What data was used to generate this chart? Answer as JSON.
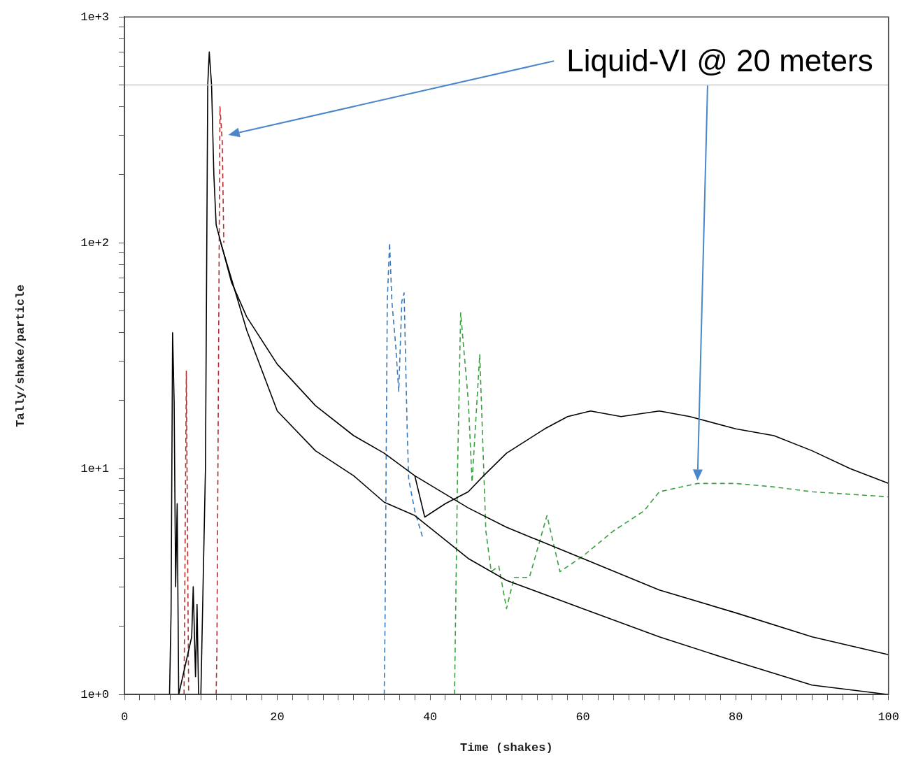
{
  "chart_data": {
    "type": "line",
    "xlabel": "Time (shakes)",
    "ylabel": "Tally/shake/particle",
    "log": "y",
    "grid": false,
    "legend": false,
    "marker": "none",
    "xlim": [
      0,
      100
    ],
    "ylim": [
      1,
      1000
    ],
    "xticks": [
      0,
      {
        "value": 2,
        "label": null
      },
      {
        "value": 4,
        "label": null
      },
      {
        "value": 6,
        "label": null
      },
      {
        "value": 8,
        "label": null
      },
      {
        "value": 10,
        "label": null
      },
      {
        "value": 12,
        "label": null
      },
      {
        "value": 14,
        "label": null
      },
      {
        "value": 16,
        "label": null
      },
      {
        "value": 18,
        "label": null
      },
      20,
      {
        "value": 22,
        "label": null
      },
      {
        "value": 24,
        "label": null
      },
      {
        "value": 26,
        "label": null
      },
      {
        "value": 28,
        "label": null
      },
      {
        "value": 30,
        "label": null
      },
      {
        "value": 32,
        "label": null
      },
      {
        "value": 34,
        "label": null
      },
      {
        "value": 36,
        "label": null
      },
      {
        "value": 38,
        "label": null
      },
      40,
      {
        "value": 42,
        "label": null
      },
      {
        "value": 44,
        "label": null
      },
      {
        "value": 46,
        "label": null
      },
      {
        "value": 48,
        "label": null
      },
      {
        "value": 50,
        "label": null
      },
      {
        "value": 52,
        "label": null
      },
      {
        "value": 54,
        "label": null
      },
      {
        "value": 56,
        "label": null
      },
      {
        "value": 58,
        "label": null
      },
      60,
      {
        "value": 62,
        "label": null
      },
      {
        "value": 64,
        "label": null
      },
      {
        "value": 66,
        "label": null
      },
      {
        "value": 68,
        "label": null
      },
      {
        "value": 70,
        "label": null
      },
      {
        "value": 72,
        "label": null
      },
      {
        "value": 74,
        "label": null
      },
      {
        "value": 76,
        "label": null
      },
      {
        "value": 78,
        "label": null
      },
      80,
      {
        "value": 82,
        "label": null
      },
      {
        "value": 84,
        "label": null
      },
      {
        "value": 86,
        "label": null
      },
      {
        "value": 88,
        "label": null
      },
      {
        "value": 90,
        "label": null
      },
      {
        "value": 92,
        "label": null
      },
      {
        "value": 94,
        "label": null
      },
      {
        "value": 96,
        "label": null
      },
      {
        "value": 98,
        "label": null
      },
      100
    ],
    "yticks": [
      {
        "value": 1,
        "label": "1e+0"
      },
      {
        "value": 2,
        "label": null
      },
      {
        "value": 3,
        "label": null
      },
      {
        "value": 4,
        "label": null
      },
      {
        "value": 5,
        "label": null
      },
      {
        "value": 6,
        "label": null
      },
      {
        "value": 7,
        "label": null
      },
      {
        "value": 8,
        "label": null
      },
      {
        "value": 9,
        "label": null
      },
      {
        "value": 10,
        "label": "1e+1"
      },
      {
        "value": 20,
        "label": null
      },
      {
        "value": 30,
        "label": null
      },
      {
        "value": 40,
        "label": null
      },
      {
        "value": 50,
        "label": null
      },
      {
        "value": 60,
        "label": null
      },
      {
        "value": 70,
        "label": null
      },
      {
        "value": 80,
        "label": null
      },
      {
        "value": 90,
        "label": null
      },
      {
        "value": 100,
        "label": "1e+2"
      },
      {
        "value": 200,
        "label": null
      },
      {
        "value": 300,
        "label": null
      },
      {
        "value": 400,
        "label": null
      },
      {
        "value": 500,
        "label": null
      },
      {
        "value": 600,
        "label": null
      },
      {
        "value": 700,
        "label": null
      },
      {
        "value": 800,
        "label": null
      },
      {
        "value": 900,
        "label": null
      },
      {
        "value": 1000,
        "label": "1e+3"
      }
    ],
    "ref_lines": [
      {
        "axis": "y",
        "value": 500,
        "color": "#c8c8c8"
      }
    ],
    "annotations": [
      "Liquid-VI @ 20 meters"
    ],
    "series": [
      {
        "color": "#000000",
        "line_style": "solid",
        "x": [
          5.9,
          6.1,
          6.3,
          6.5,
          6.7,
          6.9,
          7.1,
          8.8,
          9.0,
          9.3,
          9.5,
          9.7,
          10.0,
          10.6,
          10.9,
          11.1,
          11.4,
          11.7,
          12,
          14,
          16,
          20,
          25,
          30,
          34,
          38,
          45,
          50,
          60,
          70,
          80,
          90,
          100
        ],
        "values": [
          1,
          2.3,
          40,
          20,
          3,
          7,
          1,
          1.8,
          3,
          1.2,
          2.5,
          1,
          1,
          10,
          500,
          700,
          500,
          200,
          120,
          67,
          47,
          29,
          19,
          14,
          11.7,
          9.3,
          6.7,
          5.5,
          4.0,
          2.9,
          2.3,
          1.8,
          1.5
        ]
      },
      {
        "color": "#000000",
        "line_style": "solid",
        "x": [
          38,
          39.3,
          42,
          45,
          47,
          50,
          55,
          58,
          61,
          65,
          70,
          74,
          80,
          85,
          90,
          95,
          100
        ],
        "values": [
          9.3,
          6.1,
          7.0,
          7.9,
          9.3,
          11.7,
          15,
          17,
          18,
          17,
          18,
          17,
          15,
          14,
          12,
          10,
          8.6
        ]
      },
      {
        "color": "#000000",
        "line_style": "solid",
        "x": [
          12.6,
          13,
          16,
          20,
          25,
          30,
          34,
          38,
          45,
          50,
          60,
          70,
          80,
          90,
          100
        ],
        "values": [
          100,
          90,
          41,
          18,
          12,
          9.3,
          7.1,
          6.2,
          4.0,
          3.2,
          2.4,
          1.8,
          1.4,
          1.1,
          1
        ]
      },
      {
        "color": "#3aa040",
        "line_style": "dashed",
        "x": [
          43.2,
          43.6,
          44,
          45,
          45.5,
          46.5,
          47.3,
          48,
          49,
          50,
          51,
          53,
          55.3,
          57,
          60,
          64,
          68,
          70,
          75,
          80,
          85,
          90,
          95,
          100
        ],
        "values": [
          1,
          10,
          49,
          20,
          8.7,
          32,
          5.3,
          3.5,
          3.7,
          2.4,
          3.3,
          3.3,
          6.2,
          3.5,
          4.1,
          5.3,
          6.5,
          7.9,
          8.6,
          8.6,
          8.3,
          7.9,
          7.7,
          7.5
        ]
      },
      {
        "color": "#3a7ab8",
        "line_style": "dashed",
        "x": [
          34,
          34.1,
          34.4,
          34.7,
          35,
          35.5,
          35.9,
          36.3,
          36.6,
          37,
          37.2,
          38,
          39
        ],
        "values": [
          1,
          2,
          55,
          100,
          55,
          35,
          22,
          55,
          60,
          15,
          9,
          6.5,
          5
        ]
      },
      {
        "color": "#b03030",
        "line_style": "dashed",
        "x": [
          7.8,
          8.1,
          8.4,
          10,
          12,
          12.1,
          12.5,
          12.8,
          13
        ],
        "values": [
          1,
          27,
          1,
          null,
          1,
          1.6,
          400,
          280,
          100
        ]
      }
    ]
  }
}
